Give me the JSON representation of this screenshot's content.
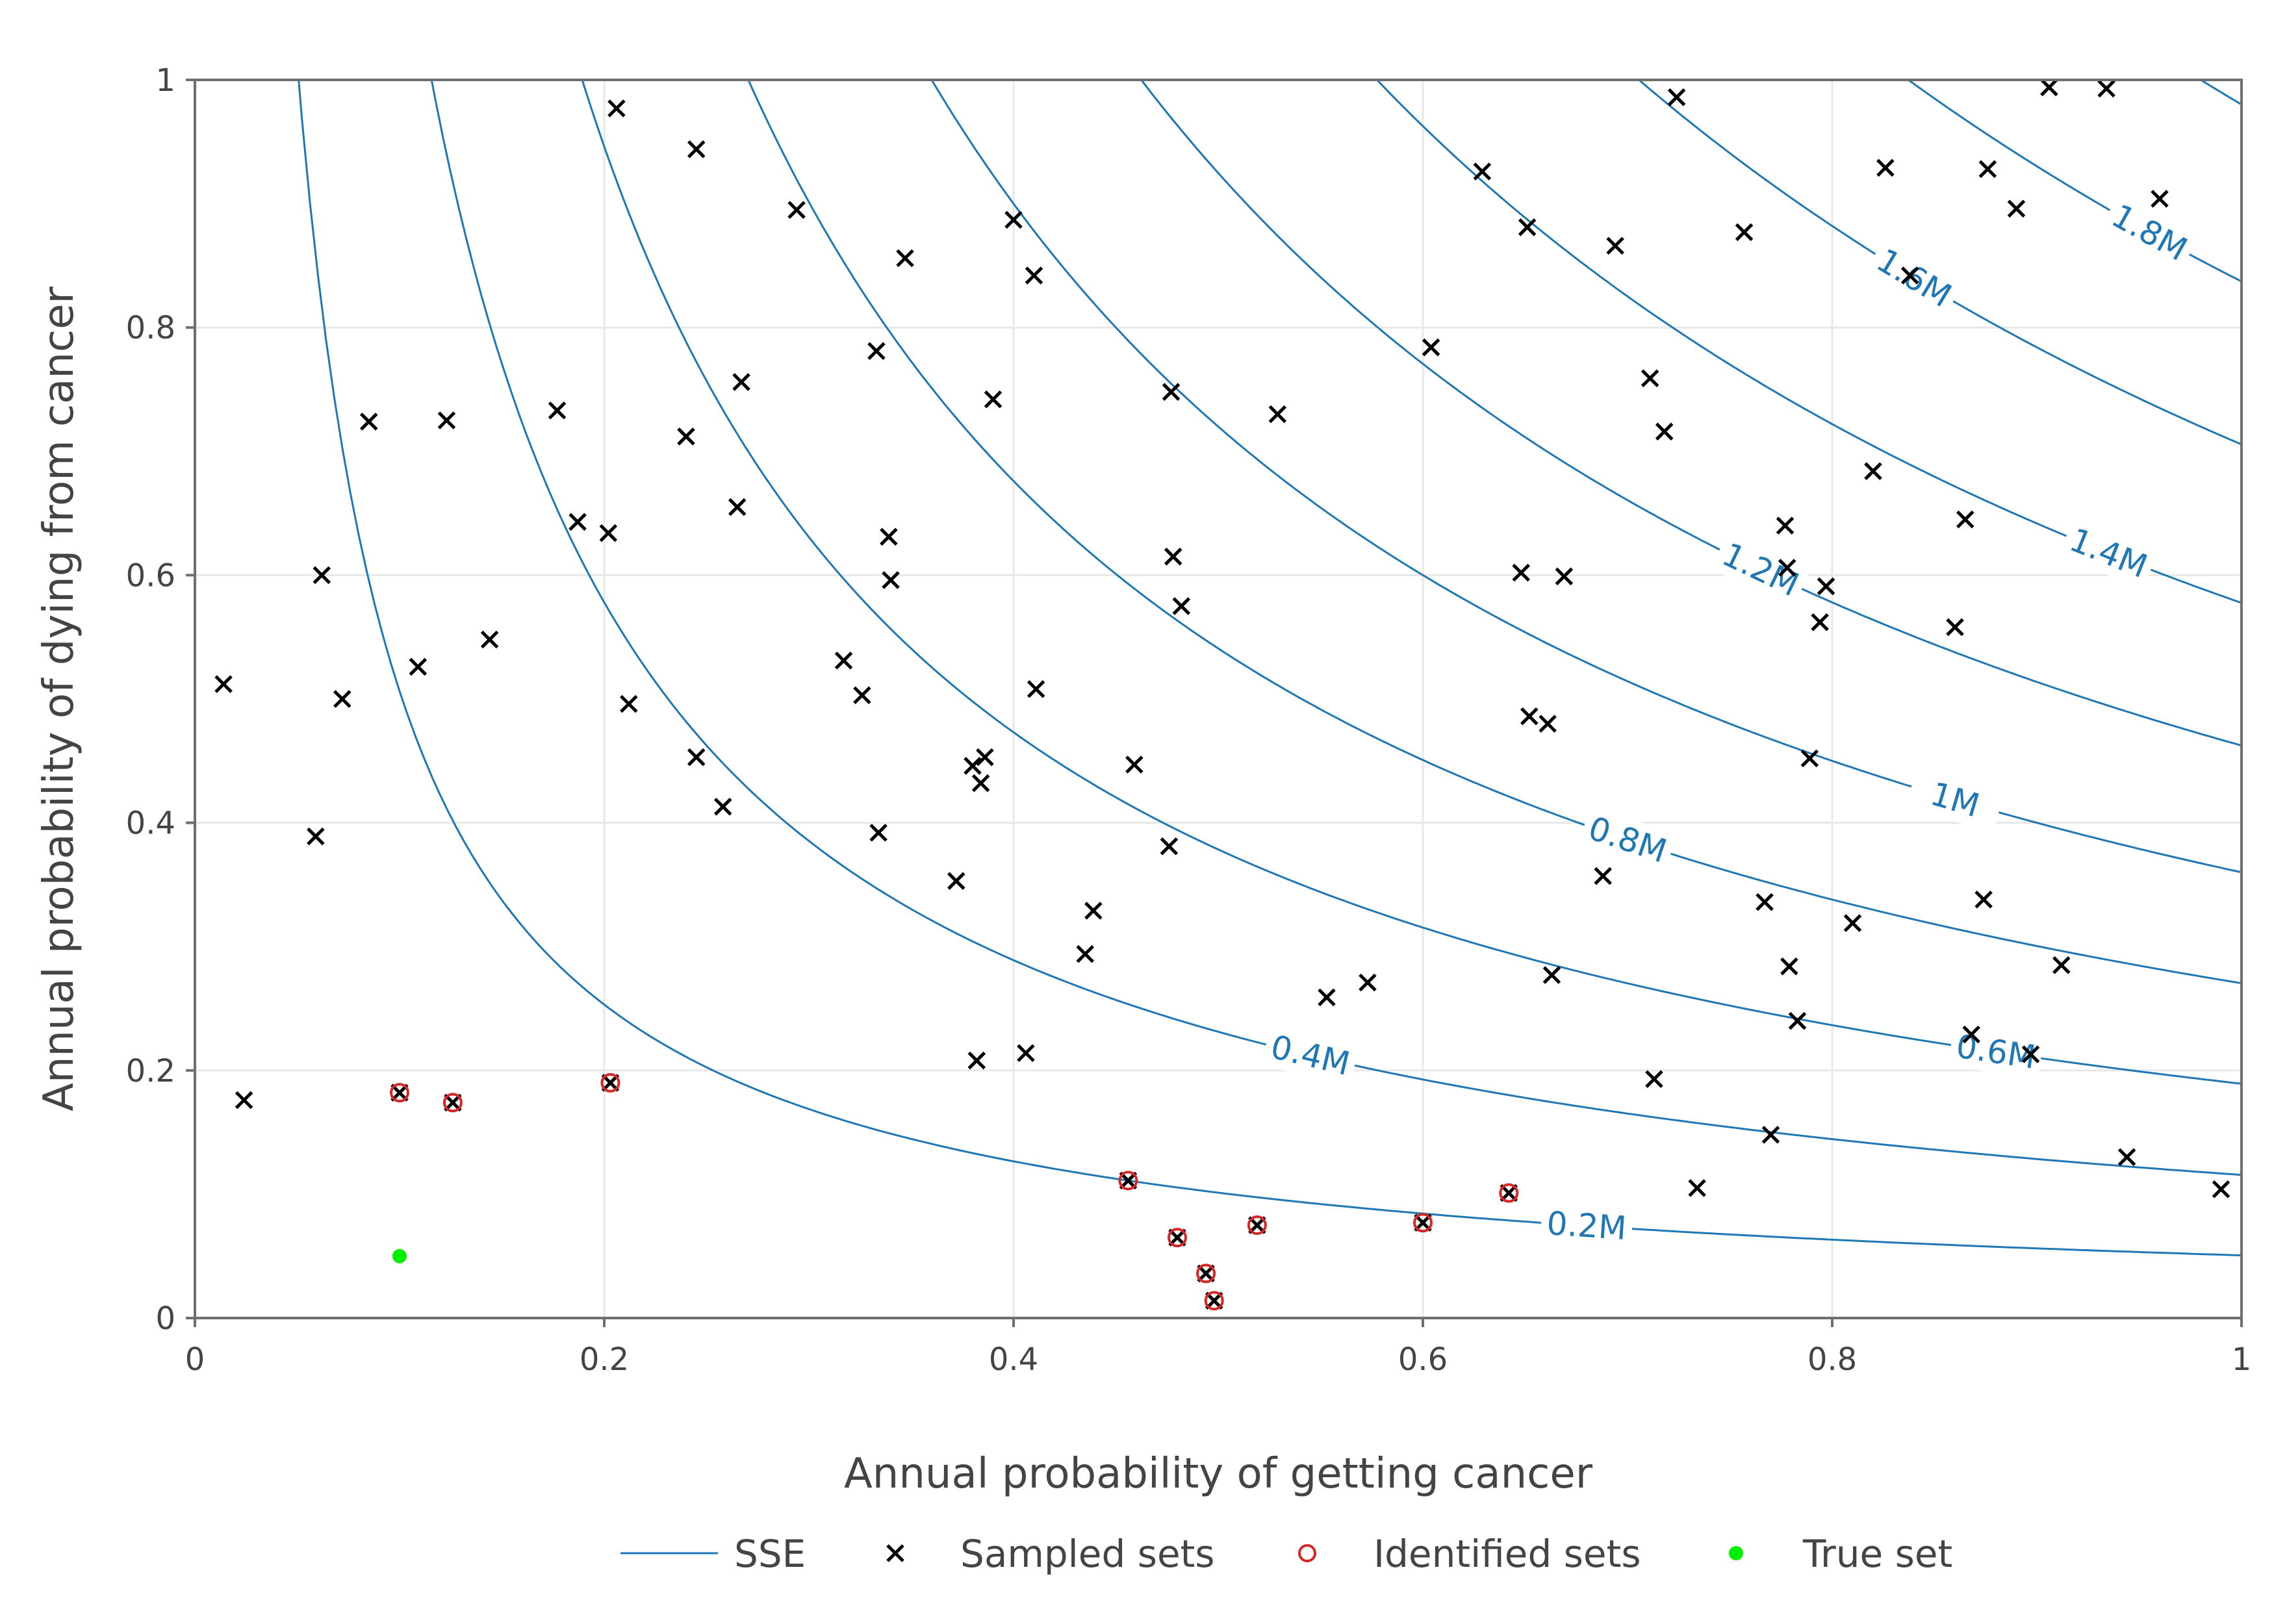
{
  "chart_data": {
    "type": "scatter",
    "xlabel": "Annual probability of getting cancer",
    "ylabel": "Annual probability of dying from cancer",
    "xlim": [
      0,
      1
    ],
    "ylim": [
      0,
      1
    ],
    "x_ticks": [
      "0",
      "0.2",
      "0.4",
      "0.6",
      "0.8",
      "1"
    ],
    "y_ticks": [
      "0",
      "0.2",
      "0.4",
      "0.6",
      "0.8",
      "1"
    ],
    "grid": true,
    "legend_position": "bottom",
    "colors": {
      "contour": "#1f77b4",
      "sampled": "#000000",
      "identified": "#d62728",
      "true": "#00ee00"
    },
    "legend": [
      "SSE",
      "Sampled sets",
      "Identified sets",
      "True set"
    ],
    "contours": [
      {
        "label": "0.2M",
        "k": 0.225,
        "label_x": 0.68
      },
      {
        "label": "0.4M",
        "k": 0.34,
        "label_x": 0.545
      },
      {
        "label": "0.6M",
        "k": 0.435,
        "label_x": 0.88
      },
      {
        "label": "0.8M",
        "k": 0.52,
        "label_x": 0.7
      },
      {
        "label": "1M",
        "k": 0.6,
        "label_x": 0.86
      },
      {
        "label": "1.2M",
        "k": 0.68,
        "label_x": 0.765
      },
      {
        "label": "1.4M",
        "k": 0.76,
        "label_x": 0.935
      },
      {
        "label": "1.6M",
        "k": 0.84,
        "label_x": 0.84
      },
      {
        "label": "1.8M",
        "k": 0.915,
        "label_x": 0.955
      },
      {
        "label": "",
        "k": 0.99,
        "label_x": 0
      }
    ],
    "series": [
      {
        "name": "Sampled sets",
        "points": [
          [
            0.014,
            0.512
          ],
          [
            0.024,
            0.176
          ],
          [
            0.059,
            0.389
          ],
          [
            0.062,
            0.6
          ],
          [
            0.072,
            0.5
          ],
          [
            0.085,
            0.724
          ],
          [
            0.1,
            0.182
          ],
          [
            0.109,
            0.526
          ],
          [
            0.123,
            0.725
          ],
          [
            0.126,
            0.174
          ],
          [
            0.144,
            0.548
          ],
          [
            0.177,
            0.733
          ],
          [
            0.187,
            0.643
          ],
          [
            0.202,
            0.634
          ],
          [
            0.203,
            0.19
          ],
          [
            0.206,
            0.977
          ],
          [
            0.212,
            0.496
          ],
          [
            0.24,
            0.712
          ],
          [
            0.245,
            0.944
          ],
          [
            0.245,
            0.453
          ],
          [
            0.258,
            0.413
          ],
          [
            0.265,
            0.655
          ],
          [
            0.267,
            0.756
          ],
          [
            0.294,
            0.895
          ],
          [
            0.317,
            0.531
          ],
          [
            0.326,
            0.503
          ],
          [
            0.333,
            0.781
          ],
          [
            0.334,
            0.392
          ],
          [
            0.339,
            0.631
          ],
          [
            0.34,
            0.596
          ],
          [
            0.347,
            0.856
          ],
          [
            0.372,
            0.353
          ],
          [
            0.38,
            0.446
          ],
          [
            0.382,
            0.208
          ],
          [
            0.384,
            0.432
          ],
          [
            0.386,
            0.453
          ],
          [
            0.39,
            0.742
          ],
          [
            0.4,
            0.887
          ],
          [
            0.406,
            0.214
          ],
          [
            0.41,
            0.842
          ],
          [
            0.411,
            0.508
          ],
          [
            0.435,
            0.294
          ],
          [
            0.439,
            0.329
          ],
          [
            0.456,
            0.111
          ],
          [
            0.459,
            0.447
          ],
          [
            0.476,
            0.381
          ],
          [
            0.477,
            0.748
          ],
          [
            0.478,
            0.615
          ],
          [
            0.48,
            0.065
          ],
          [
            0.482,
            0.575
          ],
          [
            0.494,
            0.036
          ],
          [
            0.498,
            0.014
          ],
          [
            0.519,
            0.075
          ],
          [
            0.529,
            0.73
          ],
          [
            0.553,
            0.259
          ],
          [
            0.573,
            0.271
          ],
          [
            0.6,
            0.077
          ],
          [
            0.604,
            0.784
          ],
          [
            0.629,
            0.926
          ],
          [
            0.642,
            0.101
          ],
          [
            0.648,
            0.602
          ],
          [
            0.651,
            0.881
          ],
          [
            0.652,
            0.486
          ],
          [
            0.661,
            0.48
          ],
          [
            0.663,
            0.277
          ],
          [
            0.669,
            0.599
          ],
          [
            0.688,
            0.357
          ],
          [
            0.694,
            0.866
          ],
          [
            0.711,
            0.759
          ],
          [
            0.713,
            0.193
          ],
          [
            0.718,
            0.716
          ],
          [
            0.724,
            0.986
          ],
          [
            0.734,
            0.105
          ],
          [
            0.757,
            0.877
          ],
          [
            0.767,
            0.336
          ],
          [
            0.77,
            0.148
          ],
          [
            0.777,
            0.64
          ],
          [
            0.778,
            0.606
          ],
          [
            0.779,
            0.284
          ],
          [
            0.783,
            0.24
          ],
          [
            0.789,
            0.452
          ],
          [
            0.794,
            0.562
          ],
          [
            0.797,
            0.591
          ],
          [
            0.81,
            0.319
          ],
          [
            0.82,
            0.684
          ],
          [
            0.826,
            0.929
          ],
          [
            0.838,
            0.842
          ],
          [
            0.86,
            0.558
          ],
          [
            0.865,
            0.645
          ],
          [
            0.868,
            0.229
          ],
          [
            0.874,
            0.338
          ],
          [
            0.876,
            0.928
          ],
          [
            0.89,
            0.896
          ],
          [
            0.897,
            0.213
          ],
          [
            0.906,
            0.994
          ],
          [
            0.912,
            0.285
          ],
          [
            0.934,
            0.993
          ],
          [
            0.944,
            0.13
          ],
          [
            0.96,
            0.904
          ],
          [
            0.99,
            0.104
          ]
        ]
      },
      {
        "name": "Identified sets",
        "points": [
          [
            0.1,
            0.182
          ],
          [
            0.126,
            0.174
          ],
          [
            0.203,
            0.19
          ],
          [
            0.456,
            0.111
          ],
          [
            0.48,
            0.065
          ],
          [
            0.494,
            0.036
          ],
          [
            0.498,
            0.014
          ],
          [
            0.519,
            0.075
          ],
          [
            0.6,
            0.077
          ],
          [
            0.642,
            0.101
          ]
        ]
      },
      {
        "name": "True set",
        "points": [
          [
            0.1,
            0.05
          ]
        ]
      }
    ]
  }
}
